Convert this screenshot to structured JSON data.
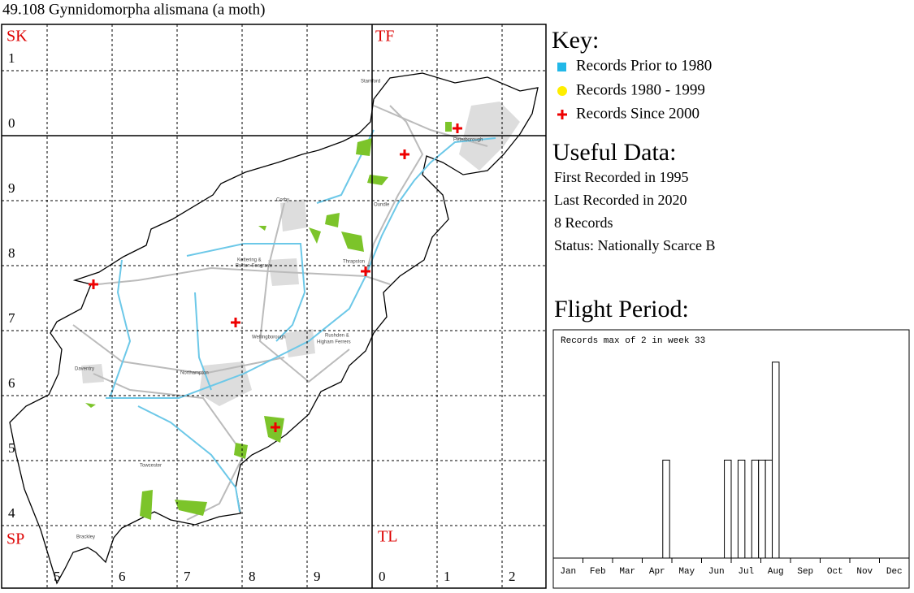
{
  "title": "49.108 Gynnidomorpha alismana (a moth)",
  "map": {
    "squares": [
      "SK",
      "TF",
      "SP",
      "TL"
    ],
    "northings": [
      "1",
      "0",
      "9",
      "8",
      "7",
      "6",
      "5",
      "4"
    ],
    "eastings": [
      "5",
      "6",
      "7",
      "8",
      "9",
      "0",
      "1",
      "2"
    ],
    "towns": [
      "Stamford",
      "Peterborough",
      "Corby",
      "Oundle",
      "Kettering &",
      "Burton Seagrave",
      "Thrapston",
      "Wellingborough",
      "Rushden &",
      "Higham Ferrers",
      "Daventry",
      "Northampton",
      "Towcester",
      "Brackley"
    ]
  },
  "key": {
    "heading": "Key:",
    "items": [
      "Records Prior to 1980",
      "Records 1980 - 1999",
      "Records Since 2000"
    ]
  },
  "useful_data": {
    "heading": "Useful Data:",
    "lines": [
      "First Recorded in 1995",
      "Last Recorded in 2020",
      "8 Records",
      "Status: Nationally Scarce B"
    ]
  },
  "flight_period": {
    "heading": "Flight Period:"
  },
  "chart_data": {
    "type": "bar",
    "annotation": "Records max of 2 in week 33",
    "categories": [
      "Jan",
      "Feb",
      "Mar",
      "Apr",
      "May",
      "Jun",
      "Jul",
      "Aug",
      "Sep",
      "Oct",
      "Nov",
      "Dec"
    ],
    "x": [
      17,
      26,
      28,
      30,
      31,
      32,
      33
    ],
    "values": [
      1,
      1,
      1,
      1,
      1,
      1,
      2
    ],
    "xlim": [
      0,
      52
    ],
    "ylim": [
      0,
      2.33
    ],
    "color": "#ffffff"
  }
}
